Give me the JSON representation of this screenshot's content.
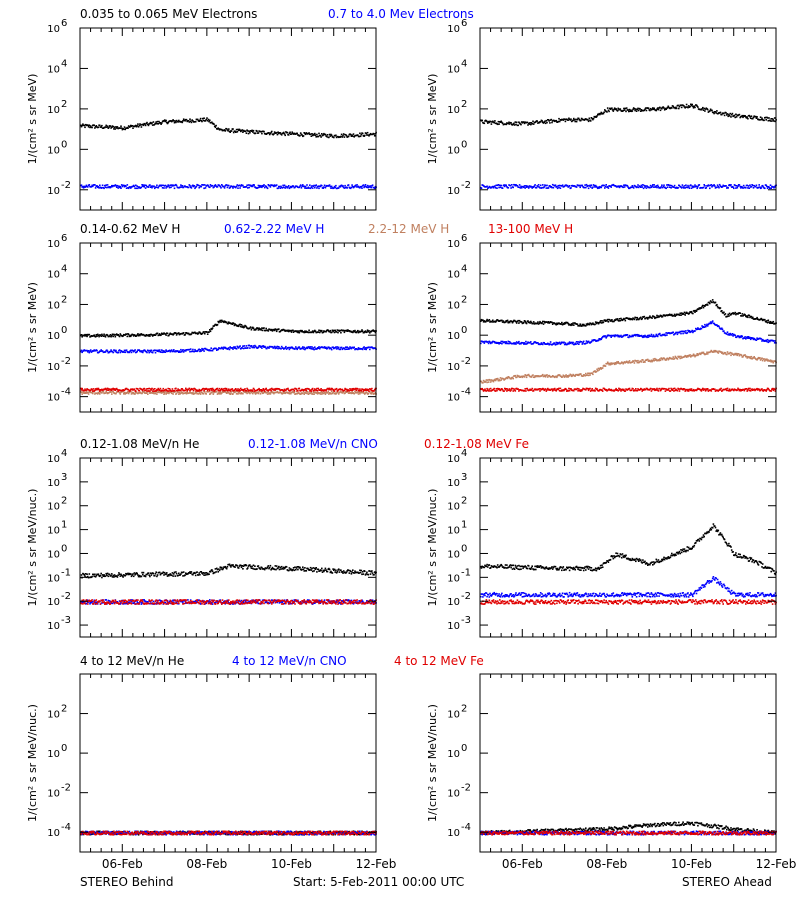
{
  "footer": {
    "left": "STEREO Behind",
    "center": "Start:  5-Feb-2011 00:00 UTC",
    "right": "STEREO Ahead"
  },
  "x_axis": {
    "ticks": [
      {
        "day": 1,
        "label": "06-Feb"
      },
      {
        "day": 3,
        "label": "08-Feb"
      },
      {
        "day": 5,
        "label": "10-Feb"
      },
      {
        "day": 7,
        "label": "12-Feb"
      }
    ],
    "range_days": [
      0,
      7
    ]
  },
  "rows": [
    {
      "ylabel": "1/(cm² s sr MeV)",
      "ymin_exp": -3,
      "ymax_exp": 6,
      "tick_exps": [
        -2,
        0,
        2,
        4,
        6
      ],
      "legend": [
        {
          "text": "0.035 to 0.065 MeV Electrons",
          "color": "#000000"
        },
        {
          "text": "0.7 to 4.0 Mev Electrons",
          "color": "#0000ff"
        }
      ]
    },
    {
      "ylabel": "1/(cm² s sr MeV)",
      "ymin_exp": -5,
      "ymax_exp": 6,
      "tick_exps": [
        -4,
        -2,
        0,
        2,
        4,
        6
      ],
      "legend": [
        {
          "text": "0.14-0.62 MeV H",
          "color": "#000000"
        },
        {
          "text": "0.62-2.22 MeV H",
          "color": "#0000ff"
        },
        {
          "text": "2.2-12 MeV H",
          "color": "#c08060"
        },
        {
          "text": "13-100 MeV H",
          "color": "#e00000"
        }
      ]
    },
    {
      "ylabel": "1/(cm² s sr MeV/nuc.)",
      "ymin_exp": -3.5,
      "ymax_exp": 4,
      "tick_exps": [
        -3,
        -2,
        -1,
        0,
        1,
        2,
        3,
        4
      ],
      "legend": [
        {
          "text": "0.12-1.08 MeV/n He",
          "color": "#000000"
        },
        {
          "text": "0.12-1.08 MeV/n CNO",
          "color": "#0000ff"
        },
        {
          "text": "0.12-1.08 MeV Fe",
          "color": "#e00000"
        }
      ]
    },
    {
      "ylabel": "1/(cm² s sr MeV/nuc.)",
      "ymin_exp": -5,
      "ymax_exp": 4,
      "tick_exps": [
        -4,
        -2,
        0,
        2
      ],
      "legend": [
        {
          "text": "4 to 12 MeV/n He",
          "color": "#000000"
        },
        {
          "text": "4 to 12 MeV/n CNO",
          "color": "#0000ff"
        },
        {
          "text": "4 to 12 MeV Fe",
          "color": "#e00000"
        }
      ]
    }
  ],
  "chart_data": [
    {
      "type": "scatter",
      "panel": "behind-electrons",
      "yscale": "log",
      "series": [
        {
          "name": "0.035 to 0.065 MeV Electrons",
          "color": "#000000",
          "points": [
            [
              0,
              1.2
            ],
            [
              1,
              1.1
            ],
            [
              2,
              1.4
            ],
            [
              3,
              1.5
            ],
            [
              3.3,
              1.0
            ],
            [
              4,
              0.9
            ],
            [
              5,
              0.8
            ],
            [
              6,
              0.7
            ],
            [
              7,
              0.8
            ]
          ]
        },
        {
          "name": "0.7 to 4.0 Mev Electrons",
          "color": "#0000ff",
          "points": [
            [
              0,
              -1.8
            ],
            [
              2,
              -1.8
            ],
            [
              4,
              -1.8
            ],
            [
              6,
              -1.8
            ],
            [
              7,
              -1.8
            ]
          ]
        }
      ]
    },
    {
      "type": "scatter",
      "panel": "ahead-electrons",
      "yscale": "log",
      "series": [
        {
          "name": "0.035 to 0.065 MeV Electrons",
          "color": "#000000",
          "points": [
            [
              0,
              1.4
            ],
            [
              1,
              1.3
            ],
            [
              2,
              1.5
            ],
            [
              2.6,
              1.5
            ],
            [
              3,
              2.0
            ],
            [
              4,
              2.0
            ],
            [
              5,
              2.2
            ],
            [
              5.5,
              1.9
            ],
            [
              6,
              1.7
            ],
            [
              7,
              1.5
            ]
          ]
        },
        {
          "name": "0.7 to 4.0 Mev Electrons",
          "color": "#0000ff",
          "points": [
            [
              0,
              -1.8
            ],
            [
              2,
              -1.8
            ],
            [
              4,
              -1.8
            ],
            [
              6,
              -1.8
            ],
            [
              7,
              -1.8
            ]
          ]
        }
      ]
    },
    {
      "type": "scatter",
      "panel": "behind-protons",
      "yscale": "log",
      "series": [
        {
          "name": "0.14-0.62 MeV H",
          "color": "#000000",
          "points": [
            [
              0,
              0.0
            ],
            [
              2,
              0.1
            ],
            [
              3,
              0.2
            ],
            [
              3.3,
              1.0
            ],
            [
              4,
              0.5
            ],
            [
              5,
              0.3
            ],
            [
              6,
              0.3
            ],
            [
              7,
              0.3
            ]
          ]
        },
        {
          "name": "0.62-2.22 MeV H",
          "color": "#0000ff",
          "points": [
            [
              0,
              -1.0
            ],
            [
              2,
              -1.0
            ],
            [
              3,
              -0.9
            ],
            [
              4,
              -0.7
            ],
            [
              5,
              -0.8
            ],
            [
              6,
              -0.8
            ],
            [
              7,
              -0.8
            ]
          ]
        },
        {
          "name": "2.2-12 MeV H",
          "color": "#c08060",
          "points": [
            [
              0,
              -3.7
            ],
            [
              7,
              -3.7
            ]
          ]
        },
        {
          "name": "13-100 MeV H",
          "color": "#e00000",
          "points": [
            [
              0,
              -3.5
            ],
            [
              7,
              -3.5
            ]
          ]
        }
      ]
    },
    {
      "type": "scatter",
      "panel": "ahead-protons",
      "yscale": "log",
      "series": [
        {
          "name": "0.14-0.62 MeV H",
          "color": "#000000",
          "points": [
            [
              0,
              1.0
            ],
            [
              1,
              0.9
            ],
            [
              2,
              0.8
            ],
            [
              2.5,
              0.7
            ],
            [
              3,
              1.0
            ],
            [
              4,
              1.2
            ],
            [
              5,
              1.5
            ],
            [
              5.5,
              2.3
            ],
            [
              5.8,
              1.3
            ],
            [
              6,
              1.5
            ],
            [
              7,
              0.8
            ]
          ]
        },
        {
          "name": "0.62-2.22 MeV H",
          "color": "#0000ff",
          "points": [
            [
              0,
              -0.4
            ],
            [
              2,
              -0.5
            ],
            [
              2.6,
              -0.4
            ],
            [
              3,
              0.0
            ],
            [
              4,
              0.0
            ],
            [
              5,
              0.3
            ],
            [
              5.5,
              0.9
            ],
            [
              5.8,
              0.2
            ],
            [
              6,
              0.0
            ],
            [
              7,
              -0.4
            ]
          ]
        },
        {
          "name": "2.2-12 MeV H",
          "color": "#c08060",
          "points": [
            [
              0,
              -3.0
            ],
            [
              1,
              -2.6
            ],
            [
              2,
              -2.6
            ],
            [
              2.6,
              -2.5
            ],
            [
              3,
              -1.8
            ],
            [
              4,
              -1.6
            ],
            [
              5,
              -1.3
            ],
            [
              5.5,
              -1.0
            ],
            [
              6,
              -1.2
            ],
            [
              7,
              -1.7
            ]
          ]
        },
        {
          "name": "13-100 MeV H",
          "color": "#e00000",
          "points": [
            [
              0,
              -3.5
            ],
            [
              7,
              -3.5
            ]
          ]
        }
      ]
    },
    {
      "type": "scatter",
      "panel": "behind-heavy-ions",
      "yscale": "log",
      "series": [
        {
          "name": "0.12-1.08 MeV/n He",
          "color": "#000000",
          "points": [
            [
              0,
              -0.9
            ],
            [
              3,
              -0.8
            ],
            [
              3.5,
              -0.5
            ],
            [
              5,
              -0.6
            ],
            [
              7,
              -0.8
            ]
          ]
        },
        {
          "name": "0.12-1.08 MeV/n CNO",
          "color": "#0000ff",
          "points": [
            [
              0,
              -2.0
            ],
            [
              7,
              -2.0
            ]
          ]
        },
        {
          "name": "0.12-1.08 MeV Fe",
          "color": "#e00000",
          "points": [
            [
              0,
              -2.0
            ],
            [
              7,
              -2.0
            ]
          ]
        }
      ]
    },
    {
      "type": "scatter",
      "panel": "ahead-heavy-ions",
      "yscale": "log",
      "series": [
        {
          "name": "0.12-1.08 MeV/n He",
          "color": "#000000",
          "points": [
            [
              0,
              -0.5
            ],
            [
              2,
              -0.6
            ],
            [
              2.8,
              -0.6
            ],
            [
              3.2,
              0.0
            ],
            [
              4,
              -0.4
            ],
            [
              5,
              0.3
            ],
            [
              5.5,
              1.2
            ],
            [
              5.9,
              0.3
            ],
            [
              6,
              0.0
            ],
            [
              6.5,
              -0.3
            ],
            [
              7,
              -0.8
            ]
          ]
        },
        {
          "name": "0.12-1.08 MeV/n CNO",
          "color": "#0000ff",
          "points": [
            [
              0,
              -1.7
            ],
            [
              5,
              -1.7
            ],
            [
              5.5,
              -1.0
            ],
            [
              6,
              -1.7
            ],
            [
              7,
              -1.7
            ]
          ]
        },
        {
          "name": "0.12-1.08 MeV Fe",
          "color": "#e00000",
          "points": [
            [
              0,
              -2.0
            ],
            [
              7,
              -2.0
            ]
          ]
        }
      ]
    },
    {
      "type": "scatter",
      "panel": "behind-high-energy-ions",
      "yscale": "log",
      "series": [
        {
          "name": "4 to 12 MeV/n He",
          "color": "#000000",
          "points": [
            [
              0,
              -4.0
            ],
            [
              7,
              -4.0
            ]
          ]
        },
        {
          "name": "4 to 12 MeV/n CNO",
          "color": "#0000ff",
          "points": [
            [
              0,
              -4.0
            ],
            [
              7,
              -4.0
            ]
          ]
        },
        {
          "name": "4 to 12 MeV Fe",
          "color": "#e00000",
          "points": [
            [
              0,
              -4.0
            ],
            [
              7,
              -4.0
            ]
          ]
        }
      ]
    },
    {
      "type": "scatter",
      "panel": "ahead-high-energy-ions",
      "yscale": "log",
      "series": [
        {
          "name": "4 to 12 MeV/n He",
          "color": "#000000",
          "points": [
            [
              0,
              -4.0
            ],
            [
              3,
              -3.8
            ],
            [
              4,
              -3.6
            ],
            [
              5,
              -3.5
            ],
            [
              6,
              -3.8
            ],
            [
              7,
              -4.0
            ]
          ]
        },
        {
          "name": "4 to 12 MeV/n CNO",
          "color": "#0000ff",
          "points": [
            [
              0,
              -4.0
            ],
            [
              7,
              -4.0
            ]
          ]
        },
        {
          "name": "4 to 12 MeV Fe",
          "color": "#e00000",
          "points": [
            [
              0,
              -4.0
            ],
            [
              7,
              -4.0
            ]
          ]
        }
      ]
    }
  ]
}
